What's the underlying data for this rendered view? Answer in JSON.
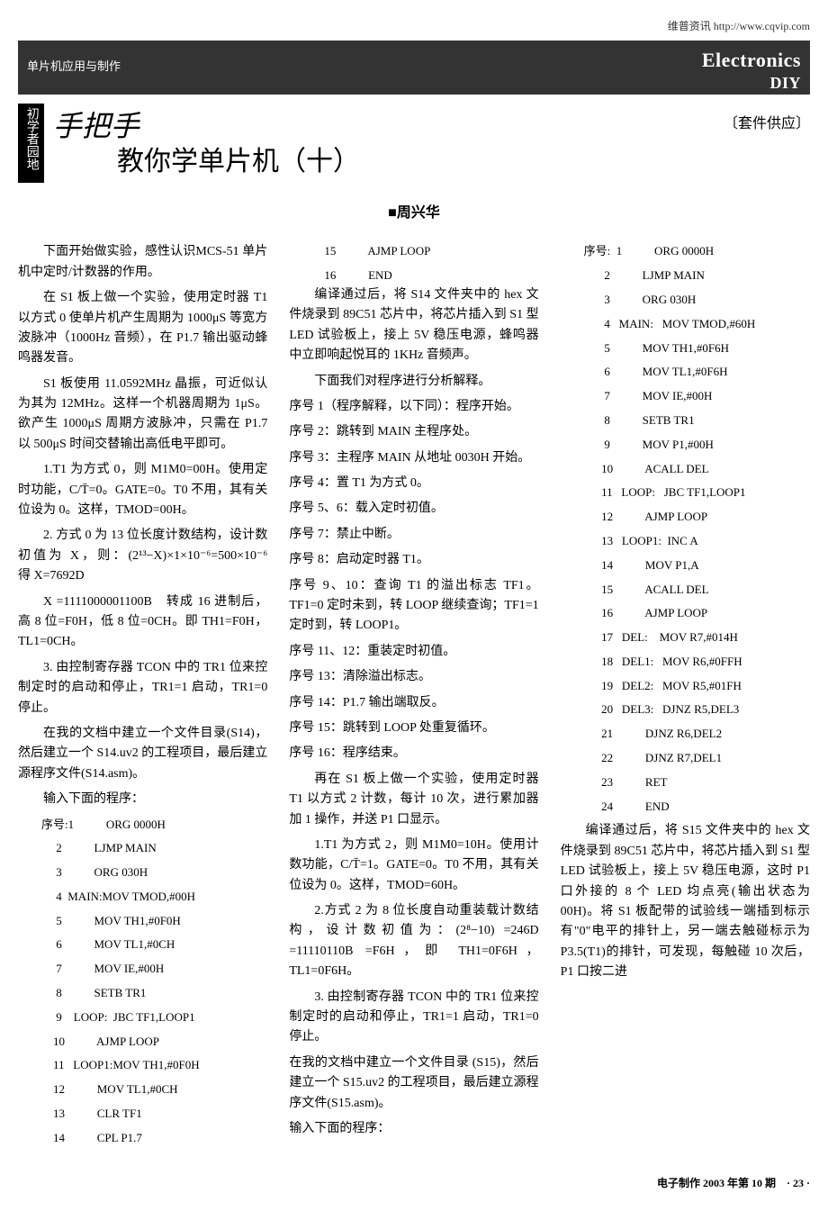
{
  "header_link": "维普资讯 http://www.cqvip.com",
  "topbar_category": "单片机应用与制作",
  "topbar_brand": "Electronics",
  "topbar_sub": "DIY",
  "badge": "初学者园地",
  "supply": "〔套件供应〕",
  "hand_title": "手把手",
  "main_title": "教你学单片机（十）",
  "author": "■周兴华",
  "body": {
    "p1": "下面开始做实验，感性认识MCS-51 单片机中定时/计数器的作用。",
    "p2": "在 S1 板上做一个实验，使用定时器 T1 以方式 0 使单片机产生周期为 1000μS 等宽方波脉冲（1000Hz 音频），在 P1.7 输出驱动蜂鸣器发音。",
    "p3": "S1 板使用 11.0592MHz 晶振，可近似认为其为 12MHz。这样一个机器周期为 1μS。欲产生 1000μS 周期方波脉冲，只需在 P1.7 以 500μS 时间交替输出高低电平即可。",
    "p4": "1.T1 为方式 0，则 M1M0=00H。使用定时功能，C/T̄=0。GATE=0。T0 不用，其有关位设为 0。这样，TMOD=00H。",
    "p5": "2. 方式 0 为 13 位长度计数结构，设计数初值为 X，则：(2¹³−X)×1×10⁻⁶=500×10⁻⁶　得 X=7692D",
    "p6": "X =1111000001100B　转成 16 进制后，高 8 位=F0H，低 8 位=0CH。即 TH1=F0H，TL1=0CH。",
    "p7": "3. 由控制寄存器 TCON 中的 TR1 位来控制定时的启动和停止，TR1=1 启动，TR1=0 停止。",
    "p8": "在我的文档中建立一个文件目录(S14)，然后建立一个 S14.uv2 的工程项目，最后建立源程序文件(S14.asm)。",
    "p9": "输入下面的程序：",
    "code1": [
      "序号:1           ORG 0000H",
      "     2           LJMP MAIN",
      "     3           ORG 030H",
      "     4  MAIN:MOV TMOD,#00H",
      "     5           MOV TH1,#0F0H",
      "     6           MOV TL1,#0CH",
      "     7           MOV IE,#00H",
      "     8           SETB TR1",
      "     9    LOOP:  JBC TF1,LOOP1",
      "    10           AJMP LOOP",
      "    11   LOOP1:MOV TH1,#0F0H",
      "    12           MOV TL1,#0CH",
      "    13           CLR TF1",
      "    14           CPL P1.7",
      "    15           AJMP LOOP",
      "    16           END"
    ],
    "p10": "编译通过后，将 S14 文件夹中的 hex 文件烧录到 89C51 芯片中，将芯片插入到 S1 型 LED 试验板上，接上 5V 稳压电源，蜂鸣器中立即响起悦耳的 1KHz 音频声。",
    "p11": "下面我们对程序进行分析解释。",
    "p12": "序号 1（程序解释，以下同）：程序开始。",
    "p13": "序号 2：跳转到 MAIN 主程序处。",
    "p14": "序号 3：主程序 MAIN 从地址 0030H 开始。",
    "p15": "序号 4：置 T1 为方式 0。",
    "p16": "序号 5、6：载入定时初值。",
    "p17": "序号 7：禁止中断。",
    "p18": "序号 8：启动定时器 T1。",
    "p19": "序号 9、10：查询 T1 的溢出标志 TF1。TF1=0 定时未到，转 LOOP 继续查询；TF1=1 定时到，转 LOOP1。",
    "p20": "序号 11、12：重装定时初值。",
    "p21": "序号 13：清除溢出标志。",
    "p22": "序号 14：P1.7 输出端取反。",
    "p23": "序号 15：跳转到 LOOP 处重复循环。",
    "p24": "序号 16：程序结束。",
    "p25": "再在 S1 板上做一个实验，使用定时器 T1 以方式 2 计数，每计 10 次，进行累加器加 1 操作，并送 P1 口显示。",
    "p26": "1.T1 为方式 2，则 M1M0=10H。使用计数功能，C/T̄=1。GATE=0。T0 不用，其有关位设为 0。这样，TMOD=60H。",
    "p27": "2.方式 2 为 8 位长度自动重装载计数结构，设计数初值为：(2⁸−10) =246D =11110110B =F6H，即 TH1=0F6H，TL1=0F6H。",
    "p28": "3. 由控制寄存器 TCON 中的 TR1 位来控制定时的启动和停止，TR1=1 启动，TR1=0 停止。",
    "p29": "在我的文档中建立一个文件目录 (S15)，然后建立一个 S15.uv2 的工程项目，最后建立源程序文件(S15.asm)。",
    "p30": "输入下面的程序：",
    "code2": [
      "序号:  1           ORG 0000H",
      "       2           LJMP MAIN",
      "       3           ORG 030H",
      "       4   MAIN:   MOV TMOD,#60H",
      "       5           MOV TH1,#0F6H",
      "       6           MOV TL1,#0F6H",
      "       7           MOV IE,#00H",
      "       8           SETB TR1",
      "       9           MOV P1,#00H",
      "      10           ACALL DEL",
      "      11   LOOP:   JBC TF1,LOOP1",
      "      12           AJMP LOOP",
      "      13   LOOP1:  INC A",
      "      14           MOV P1,A",
      "      15           ACALL DEL",
      "      16           AJMP LOOP",
      "      17   DEL:    MOV R7,#014H",
      "      18   DEL1:   MOV R6,#0FFH",
      "      19   DEL2:   MOV R5,#01FH",
      "      20   DEL3:   DJNZ R5,DEL3",
      "      21           DJNZ R6,DEL2",
      "      22           DJNZ R7,DEL1",
      "      23           RET",
      "      24           END"
    ],
    "p31": "编译通过后，将 S15 文件夹中的 hex 文件烧录到 89C51 芯片中，将芯片插入到 S1 型 LED 试验板上，接上 5V 稳压电源，这时 P1 口外接的 8 个 LED 均点亮(输出状态为 00H)。将 S1 板配带的试验线一端插到标示有\"0\"电平的排针上，另一端去触碰标示为 P3.5(T1)的排针，可发现，每触碰 10 次后，P1 口按二进"
  },
  "footer": "电子制作 2003 年第 10 期　· 23 ·"
}
